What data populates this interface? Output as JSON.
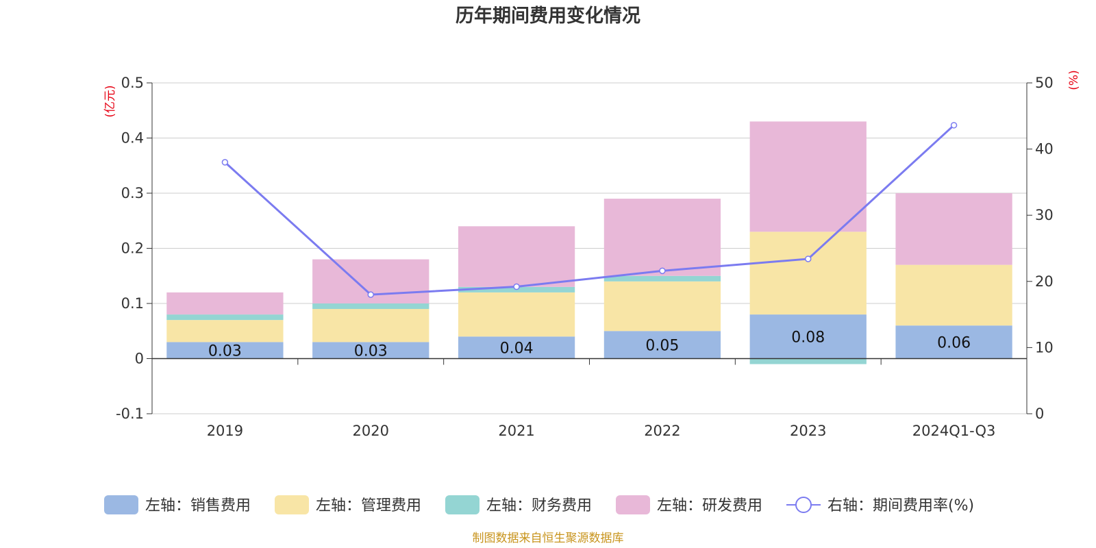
{
  "chart_data": {
    "type": "bar",
    "title": "历年期间费用变化情况",
    "categories": [
      "2019",
      "2020",
      "2021",
      "2022",
      "2023",
      "2024Q1-Q3"
    ],
    "series": [
      {
        "name": "左轴：销售费用",
        "axis": "left",
        "values": [
          0.03,
          0.03,
          0.04,
          0.05,
          0.08,
          0.06
        ]
      },
      {
        "name": "左轴：管理费用",
        "axis": "left",
        "values": [
          0.04,
          0.06,
          0.08,
          0.09,
          0.15,
          0.11
        ]
      },
      {
        "name": "左轴：财务费用",
        "axis": "left",
        "values": [
          0.01,
          0.01,
          0.01,
          0.01,
          -0.01,
          0.0
        ]
      },
      {
        "name": "左轴：研发费用",
        "axis": "left",
        "values": [
          0.04,
          0.08,
          0.11,
          0.14,
          0.2,
          0.13
        ]
      }
    ],
    "line_series": {
      "name": "右轴：期间费用率(%)",
      "axis": "right",
      "values": [
        38.0,
        18.0,
        19.2,
        21.6,
        23.4,
        43.6
      ]
    },
    "data_labels": [
      "0.03",
      "0.03",
      "0.04",
      "0.05",
      "0.08",
      "0.06"
    ],
    "left_axis": {
      "unit": "(亿元)",
      "min": -0.1,
      "max": 0.5,
      "ticks": [
        -0.1,
        0,
        0.1,
        0.2,
        0.3,
        0.4,
        0.5
      ],
      "tick_labels": [
        "-0.1",
        "0",
        "0.1",
        "0.2",
        "0.3",
        "0.4",
        "0.5"
      ]
    },
    "right_axis": {
      "unit": "(%)",
      "min": 0,
      "max": 50,
      "ticks": [
        0,
        10,
        20,
        30,
        40,
        50
      ],
      "tick_labels": [
        "0",
        "10",
        "20",
        "30",
        "40",
        "50"
      ]
    },
    "grid": true,
    "legend_position": "bottom",
    "colors": {
      "sales": "#9bb8e3",
      "admin": "#f8e5a6",
      "finance": "#94d5d3",
      "rnd": "#e8b8d8",
      "line": "#7b7bf0",
      "grid": "#cccccc",
      "axis": "#333333",
      "unit_red": "#e60012"
    },
    "source": "制图数据来自恒生聚源数据库"
  }
}
